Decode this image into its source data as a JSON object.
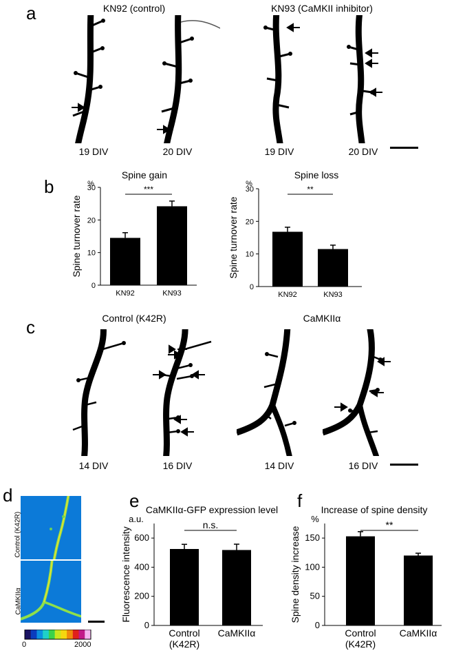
{
  "panels": {
    "a": {
      "letter": "a",
      "left_title": "KN92 (control)",
      "right_title": "KN93 (CaMKII inhibitor)",
      "captions": [
        "19 DIV",
        "20 DIV",
        "19 DIV",
        "20 DIV"
      ]
    },
    "b": {
      "letter": "b",
      "gain_title": "Spine gain",
      "loss_title": "Spine loss",
      "ylabel": "Spine turnover rate",
      "unit": "%",
      "gain_sig": "***",
      "loss_sig": "**"
    },
    "c": {
      "letter": "c",
      "left_title": "Control (K42R)",
      "right_title": "CaMKIIα",
      "captions": [
        "14 DIV",
        "16 DIV",
        "14 DIV",
        "16 DIV"
      ]
    },
    "d": {
      "letter": "d",
      "top_label": "Control (K42R)",
      "bottom_label": "CaMKIIα",
      "colorbar_min": "0",
      "colorbar_max": "2000",
      "colors": [
        "#1b1464",
        "#0a3cbe",
        "#0b8fe0",
        "#1fd0c8",
        "#3ad24a",
        "#c8e61e",
        "#f5d70f",
        "#f08a0c",
        "#e0201c",
        "#c2188a",
        "#f4b2f0"
      ]
    },
    "e": {
      "letter": "e",
      "title": "CaMKIIα-GFP expression level",
      "unit": "a.u.",
      "ylabel": "Fluorescence intensity",
      "sig": "n.s."
    },
    "f": {
      "letter": "f",
      "title": "Increase of spine density",
      "unit": "%",
      "ylabel": "Spine density increase",
      "sig": "**"
    }
  },
  "chart_data": [
    {
      "id": "spine-gain",
      "type": "bar",
      "title": "Spine gain",
      "ylabel": "Spine turnover rate",
      "unit": "%",
      "categories": [
        "KN92",
        "KN93"
      ],
      "values": [
        14.5,
        24.2
      ],
      "errors": [
        1.6,
        1.6
      ],
      "ylim": [
        0,
        30
      ],
      "yticks": [
        0,
        10,
        20,
        30
      ],
      "significance": "***"
    },
    {
      "id": "spine-loss",
      "type": "bar",
      "title": "Spine loss",
      "ylabel": "Spine turnover rate",
      "unit": "%",
      "categories": [
        "KN92",
        "KN93"
      ],
      "values": [
        16.8,
        11.5
      ],
      "errors": [
        1.4,
        1.2
      ],
      "ylim": [
        0,
        30
      ],
      "yticks": [
        0,
        10,
        20,
        30
      ],
      "significance": "**"
    },
    {
      "id": "expression-level",
      "type": "bar",
      "title": "CaMKIIα-GFP expression level",
      "ylabel": "Fluorescence intensity",
      "unit": "a.u.",
      "categories": [
        "Control (K42R)",
        "CaMKIIα"
      ],
      "values": [
        525,
        518
      ],
      "errors": [
        32,
        40
      ],
      "ylim": [
        0,
        700
      ],
      "yticks": [
        0,
        200,
        400,
        600
      ],
      "significance": "n.s."
    },
    {
      "id": "spine-density",
      "type": "bar",
      "title": "Increase of spine density",
      "ylabel": "Spine density increase",
      "unit": "%",
      "categories": [
        "Control (K42R)",
        "CaMKIIα"
      ],
      "values": [
        153,
        120
      ],
      "errors": [
        8,
        4
      ],
      "ylim": [
        0,
        175
      ],
      "yticks": [
        0,
        50,
        100,
        150
      ],
      "significance": "**"
    }
  ]
}
